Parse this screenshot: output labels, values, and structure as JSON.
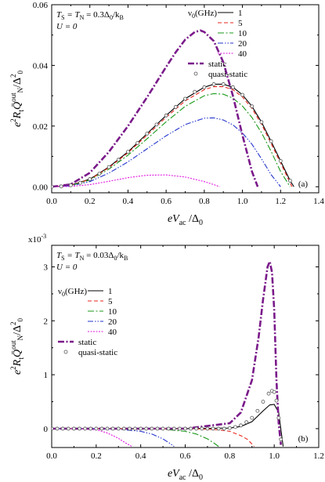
{
  "chart_data": [
    {
      "type": "line",
      "panel_label": "(a)",
      "xlabel": "eV_ac / Δ_0",
      "ylabel": "e² R_t Q̄_N^out / Δ_0²",
      "xlim": [
        0.0,
        1.4
      ],
      "ylim": [
        -0.002,
        0.06
      ],
      "x_ticks": [
        "0.0",
        "0.2",
        "0.4",
        "0.6",
        "0.8",
        "1.0",
        "1.2",
        "1.4"
      ],
      "y_ticks": [
        "0.00",
        "0.02",
        "0.04",
        "0.06"
      ],
      "annotations": [
        "T_S = T_N = 0.3Δ_0/k_B",
        "U = 0"
      ],
      "legend_title": "ν_0(GHz)",
      "legend_position": "top-right",
      "series": [
        {
          "name": "1",
          "style": "solid",
          "color": "#000000",
          "x": [
            0,
            0.1,
            0.2,
            0.3,
            0.4,
            0.5,
            0.6,
            0.7,
            0.8,
            0.85,
            0.9,
            0.95,
            1.0,
            1.05,
            1.1,
            1.15,
            1.2,
            1.25,
            1.27
          ],
          "y": [
            0,
            0.0005,
            0.0025,
            0.0065,
            0.0115,
            0.0175,
            0.0235,
            0.029,
            0.0328,
            0.0338,
            0.0338,
            0.0328,
            0.0303,
            0.0265,
            0.0213,
            0.015,
            0.0085,
            0.002,
            0
          ]
        },
        {
          "name": "5",
          "style": "dashed",
          "color": "#e8251c",
          "x": [
            0,
            0.1,
            0.2,
            0.3,
            0.4,
            0.5,
            0.6,
            0.7,
            0.8,
            0.85,
            0.9,
            0.95,
            1.0,
            1.05,
            1.1,
            1.15,
            1.2,
            1.26
          ],
          "y": [
            0,
            0.0005,
            0.0024,
            0.0063,
            0.0112,
            0.017,
            0.0229,
            0.0283,
            0.032,
            0.033,
            0.033,
            0.032,
            0.0296,
            0.0258,
            0.0206,
            0.0143,
            0.0078,
            0
          ]
        },
        {
          "name": "10",
          "style": "dash-dot",
          "color": "#1b9a1b",
          "x": [
            0,
            0.1,
            0.2,
            0.3,
            0.4,
            0.5,
            0.6,
            0.7,
            0.8,
            0.85,
            0.9,
            0.95,
            1.0,
            1.05,
            1.1,
            1.15,
            1.2,
            1.25
          ],
          "y": [
            0,
            0.0004,
            0.0022,
            0.0058,
            0.0104,
            0.0158,
            0.0214,
            0.0265,
            0.03,
            0.0307,
            0.0305,
            0.0292,
            0.0266,
            0.0228,
            0.0178,
            0.0117,
            0.005,
            0
          ]
        },
        {
          "name": "20",
          "style": "dash-dot-dot",
          "color": "#2233cc",
          "x": [
            0,
            0.1,
            0.2,
            0.3,
            0.4,
            0.5,
            0.6,
            0.7,
            0.8,
            0.85,
            0.9,
            0.95,
            1.0,
            1.05,
            1.1,
            1.15,
            1.2
          ],
          "y": [
            0,
            0.0003,
            0.0017,
            0.0045,
            0.0082,
            0.0125,
            0.0168,
            0.0205,
            0.0226,
            0.0227,
            0.022,
            0.0204,
            0.0177,
            0.014,
            0.0092,
            0.004,
            0
          ]
        },
        {
          "name": "40",
          "style": "dotted",
          "color": "#e015e0",
          "x": [
            0,
            0.1,
            0.2,
            0.3,
            0.4,
            0.5,
            0.6,
            0.7,
            0.8,
            0.85,
            0.88
          ],
          "y": [
            0,
            0.0001,
            0.0007,
            0.0018,
            0.003,
            0.0038,
            0.0039,
            0.0032,
            0.0017,
            0.0007,
            0
          ]
        },
        {
          "name": "static",
          "style": "thick dash-dot",
          "color": "#7a1a8a",
          "x": [
            0,
            0.1,
            0.2,
            0.3,
            0.4,
            0.5,
            0.6,
            0.65,
            0.7,
            0.75,
            0.78,
            0.8,
            0.85,
            0.9,
            0.95,
            1.0,
            1.05,
            1.08
          ],
          "y": [
            0,
            0.0008,
            0.0046,
            0.0115,
            0.02,
            0.0295,
            0.0395,
            0.0443,
            0.0485,
            0.051,
            0.0515,
            0.051,
            0.048,
            0.041,
            0.03,
            0.017,
            0.005,
            0
          ]
        },
        {
          "name": "quasi-static",
          "style": "open circles",
          "color": "#555555",
          "x": [
            0,
            0.05,
            0.1,
            0.15,
            0.2,
            0.25,
            0.3,
            0.35,
            0.4,
            0.45,
            0.5,
            0.55,
            0.6,
            0.65,
            0.7,
            0.75,
            0.8,
            0.85,
            0.9,
            0.95,
            1.0,
            1.05,
            1.1,
            1.15,
            1.2,
            1.25
          ],
          "y": [
            0,
            0.0001,
            0.0005,
            0.0013,
            0.0025,
            0.0043,
            0.0065,
            0.0089,
            0.0115,
            0.0144,
            0.0175,
            0.0205,
            0.0235,
            0.0263,
            0.029,
            0.0313,
            0.0328,
            0.0338,
            0.0338,
            0.0328,
            0.0303,
            0.0265,
            0.0213,
            0.015,
            0.0085,
            0.002
          ]
        }
      ]
    },
    {
      "type": "line",
      "panel_label": "(b)",
      "xlabel": "eV_ac / Δ_0",
      "ylabel": "e² R_t Q̄_N^out / Δ_0²",
      "y_multiplier": "x10",
      "y_multiplier_exp": "-3",
      "xlim": [
        0.0,
        1.2
      ],
      "ylim": [
        -0.00035,
        0.0034
      ],
      "x_ticks": [
        "0.0",
        "0.2",
        "0.4",
        "0.6",
        "0.8",
        "1.0",
        "1.2"
      ],
      "y_ticks": [
        "0",
        "1",
        "2",
        "3"
      ],
      "annotations": [
        "T_S = T_N = 0.03Δ_0/k_B",
        "U = 0"
      ],
      "legend_title": "ν_0(GHz)",
      "legend_position": "upper-left",
      "series": [
        {
          "name": "1",
          "style": "solid",
          "color": "#000000",
          "x": [
            0,
            0.2,
            0.4,
            0.6,
            0.8,
            0.85,
            0.9,
            0.95,
            0.98,
            1.0,
            1.02,
            1.04
          ],
          "y": [
            0,
            0,
            0,
            0,
            1e-05,
            4e-05,
            0.00013,
            0.00033,
            0.00044,
            0.00045,
            0.0003,
            -0.00033
          ]
        },
        {
          "name": "5",
          "style": "dashed",
          "color": "#e8251c",
          "x": [
            0,
            0.2,
            0.4,
            0.6,
            0.7,
            0.75,
            0.8,
            0.85,
            0.88,
            0.91
          ],
          "y": [
            0,
            0,
            0,
            0,
            -1e-05,
            -2e-05,
            -5e-05,
            -0.00013,
            -0.0002,
            -0.00033
          ]
        },
        {
          "name": "10",
          "style": "dash-dot",
          "color": "#1b9a1b",
          "x": [
            0,
            0.2,
            0.4,
            0.5,
            0.6,
            0.65,
            0.7,
            0.73,
            0.75
          ],
          "y": [
            0,
            0,
            0,
            -1e-05,
            -5e-05,
            -0.0001,
            -0.00019,
            -0.00027,
            -0.00033
          ]
        },
        {
          "name": "20",
          "style": "dash-dot-dot",
          "color": "#2233cc",
          "x": [
            0,
            0.2,
            0.3,
            0.4,
            0.45,
            0.5,
            0.53,
            0.55
          ],
          "y": [
            0,
            0,
            -1e-05,
            -5e-05,
            -0.0001,
            -0.00019,
            -0.00027,
            -0.00033
          ]
        },
        {
          "name": "40",
          "style": "dotted",
          "color": "#e015e0",
          "x": [
            0,
            0.1,
            0.2,
            0.25,
            0.3,
            0.33,
            0.36
          ],
          "y": [
            0,
            0,
            -2e-05,
            -8e-05,
            -0.00018,
            -0.00026,
            -0.00033
          ]
        },
        {
          "name": "static",
          "style": "thick dash-dot",
          "color": "#7a1a8a",
          "x": [
            0,
            0.2,
            0.4,
            0.6,
            0.8,
            0.85,
            0.9,
            0.93,
            0.95,
            0.97,
            0.98,
            0.99,
            1.0,
            1.01,
            1.02,
            1.03
          ],
          "y": [
            0,
            0,
            0,
            0,
            0.0001,
            0.0003,
            0.0009,
            0.0017,
            0.0024,
            0.003,
            0.0031,
            0.0029,
            0.0022,
            0.0009,
            0.0001,
            -0.0003
          ]
        },
        {
          "name": "quasi-static",
          "style": "open circles",
          "color": "#555555",
          "x": [
            0,
            0.025,
            0.05,
            0.075,
            0.1,
            0.125,
            0.15,
            0.175,
            0.2,
            0.225,
            0.25,
            0.275,
            0.3,
            0.325,
            0.35,
            0.375,
            0.4,
            0.425,
            0.45,
            0.475,
            0.5,
            0.525,
            0.55,
            0.575,
            0.6,
            0.625,
            0.65,
            0.675,
            0.7,
            0.725,
            0.75,
            0.775,
            0.8,
            0.825,
            0.85,
            0.875,
            0.9,
            0.925,
            0.95,
            0.975,
            0.99,
            1.0,
            1.01,
            1.02,
            1.03
          ],
          "y": [
            0,
            0,
            0,
            0,
            0,
            0,
            0,
            0,
            0,
            0,
            0,
            0,
            0,
            0,
            0,
            0,
            0,
            0,
            0,
            0,
            0,
            0,
            0,
            0,
            0,
            0,
            0,
            0,
            0,
            0,
            0,
            0,
            1e-05,
            3e-05,
            6e-05,
            0.00012,
            0.0002,
            0.00033,
            0.0005,
            0.00065,
            0.0007,
            0.00068,
            0.00052,
            0.0002,
            -0.0002
          ]
        }
      ]
    }
  ]
}
